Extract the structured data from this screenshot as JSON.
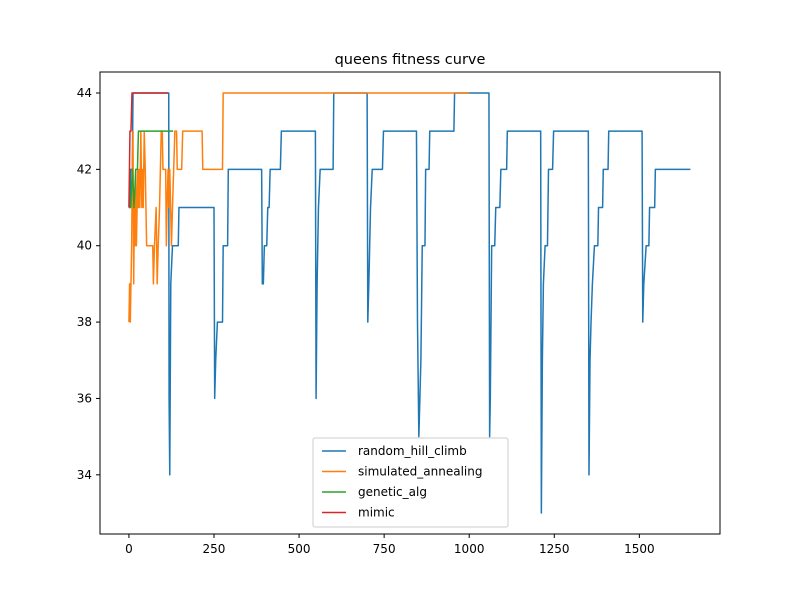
{
  "chart_data": {
    "type": "line",
    "title": "queens fitness curve",
    "xlabel": "",
    "ylabel": "",
    "xlim": [
      -85,
      1737
    ],
    "ylim": [
      32.45,
      44.55
    ],
    "xticks": [
      0,
      250,
      500,
      750,
      1000,
      1250,
      1500
    ],
    "yticks": [
      34,
      36,
      38,
      40,
      42,
      44
    ],
    "grid": false,
    "legend_position": "lower-center",
    "series": [
      {
        "name": "random_hill_climb",
        "color": "#1f77b4",
        "points": [
          [
            0,
            41
          ],
          [
            3,
            41
          ],
          [
            5,
            42
          ],
          [
            10,
            42
          ],
          [
            12,
            44
          ],
          [
            117,
            44
          ],
          [
            118,
            36
          ],
          [
            120,
            34
          ],
          [
            123,
            39
          ],
          [
            128,
            40
          ],
          [
            145,
            40
          ],
          [
            147,
            41
          ],
          [
            250,
            41
          ],
          [
            252,
            36
          ],
          [
            255,
            37
          ],
          [
            260,
            38
          ],
          [
            275,
            38
          ],
          [
            277,
            40
          ],
          [
            290,
            40
          ],
          [
            292,
            42
          ],
          [
            390,
            42
          ],
          [
            392,
            39
          ],
          [
            395,
            39
          ],
          [
            398,
            40
          ],
          [
            405,
            40
          ],
          [
            408,
            41
          ],
          [
            412,
            41
          ],
          [
            415,
            42
          ],
          [
            445,
            42
          ],
          [
            448,
            43
          ],
          [
            548,
            43
          ],
          [
            550,
            36
          ],
          [
            553,
            39
          ],
          [
            557,
            41
          ],
          [
            562,
            42
          ],
          [
            600,
            42
          ],
          [
            602,
            44
          ],
          [
            700,
            44
          ],
          [
            702,
            38
          ],
          [
            705,
            39
          ],
          [
            710,
            41
          ],
          [
            715,
            42
          ],
          [
            745,
            42
          ],
          [
            748,
            43
          ],
          [
            845,
            43
          ],
          [
            848,
            38
          ],
          [
            852,
            35
          ],
          [
            855,
            36
          ],
          [
            858,
            37
          ],
          [
            862,
            40
          ],
          [
            870,
            40
          ],
          [
            872,
            42
          ],
          [
            882,
            42
          ],
          [
            884,
            43
          ],
          [
            955,
            43
          ],
          [
            957,
            44
          ],
          [
            1058,
            44
          ],
          [
            1060,
            35
          ],
          [
            1062,
            36
          ],
          [
            1066,
            40
          ],
          [
            1075,
            40
          ],
          [
            1078,
            41
          ],
          [
            1090,
            41
          ],
          [
            1093,
            42
          ],
          [
            1110,
            42
          ],
          [
            1112,
            43
          ],
          [
            1210,
            43
          ],
          [
            1212,
            33
          ],
          [
            1215,
            37
          ],
          [
            1218,
            39
          ],
          [
            1223,
            40
          ],
          [
            1230,
            40
          ],
          [
            1233,
            42
          ],
          [
            1245,
            42
          ],
          [
            1248,
            43
          ],
          [
            1350,
            43
          ],
          [
            1352,
            34
          ],
          [
            1355,
            37
          ],
          [
            1358,
            38
          ],
          [
            1362,
            39
          ],
          [
            1368,
            40
          ],
          [
            1378,
            40
          ],
          [
            1380,
            41
          ],
          [
            1392,
            41
          ],
          [
            1394,
            42
          ],
          [
            1408,
            42
          ],
          [
            1410,
            43
          ],
          [
            1508,
            43
          ],
          [
            1510,
            38
          ],
          [
            1513,
            39
          ],
          [
            1520,
            40
          ],
          [
            1528,
            40
          ],
          [
            1530,
            41
          ],
          [
            1545,
            41
          ],
          [
            1547,
            42
          ],
          [
            1650,
            42
          ]
        ]
      },
      {
        "name": "simulated_annealing",
        "color": "#ff7f0e",
        "points": [
          [
            0,
            38
          ],
          [
            2,
            39
          ],
          [
            4,
            38
          ],
          [
            6,
            39
          ],
          [
            8,
            40
          ],
          [
            10,
            42
          ],
          [
            12,
            43
          ],
          [
            14,
            39
          ],
          [
            16,
            41
          ],
          [
            18,
            40
          ],
          [
            20,
            42
          ],
          [
            22,
            40
          ],
          [
            24,
            41
          ],
          [
            26,
            42
          ],
          [
            28,
            41
          ],
          [
            30,
            42
          ],
          [
            32,
            41
          ],
          [
            35,
            43
          ],
          [
            38,
            41
          ],
          [
            40,
            42
          ],
          [
            42,
            41
          ],
          [
            45,
            43
          ],
          [
            48,
            42
          ],
          [
            52,
            40
          ],
          [
            70,
            40
          ],
          [
            72,
            39
          ],
          [
            75,
            40
          ],
          [
            80,
            41
          ],
          [
            83,
            39
          ],
          [
            86,
            40
          ],
          [
            90,
            41
          ],
          [
            95,
            43
          ],
          [
            98,
            43
          ],
          [
            100,
            42
          ],
          [
            108,
            42
          ],
          [
            110,
            40
          ],
          [
            112,
            41
          ],
          [
            115,
            42
          ],
          [
            118,
            41
          ],
          [
            120,
            42
          ],
          [
            125,
            40
          ],
          [
            128,
            41
          ],
          [
            135,
            43
          ],
          [
            140,
            43
          ],
          [
            142,
            42
          ],
          [
            155,
            42
          ],
          [
            158,
            43
          ],
          [
            215,
            43
          ],
          [
            217,
            42
          ],
          [
            275,
            42
          ],
          [
            277,
            44
          ],
          [
            1000,
            44
          ]
        ]
      },
      {
        "name": "genetic_alg",
        "color": "#2ca02c",
        "points": [
          [
            0,
            41
          ],
          [
            5,
            41
          ],
          [
            10,
            42
          ],
          [
            15,
            41
          ],
          [
            20,
            42
          ],
          [
            25,
            42
          ],
          [
            28,
            43
          ],
          [
            130,
            43
          ]
        ]
      },
      {
        "name": "mimic",
        "color": "#d62728",
        "points": [
          [
            0,
            41
          ],
          [
            3,
            43
          ],
          [
            6,
            43
          ],
          [
            9,
            44
          ],
          [
            115,
            44
          ]
        ]
      }
    ]
  }
}
